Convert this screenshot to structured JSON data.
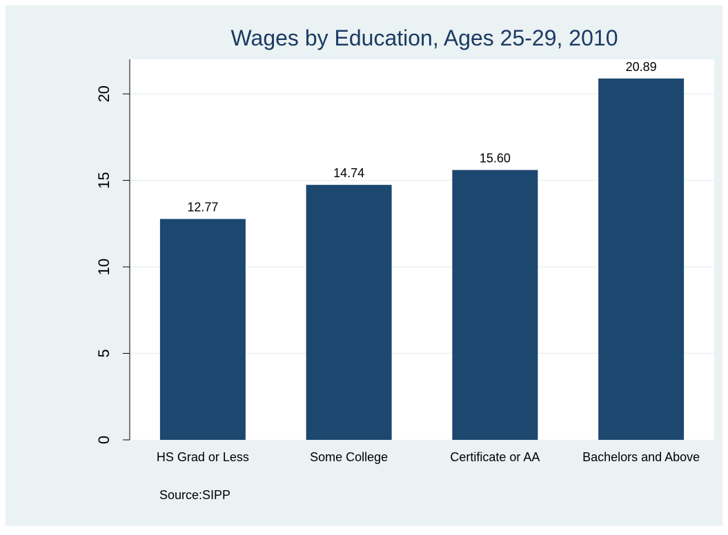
{
  "chart_data": {
    "type": "bar",
    "title": "Wages by Education, Ages 25-29, 2010",
    "xlabel": "",
    "ylabel": "",
    "categories": [
      "HS Grad or Less",
      "Some College",
      "Certificate or AA",
      "Bachelors and Above"
    ],
    "values": [
      12.77,
      14.74,
      15.6,
      20.89
    ],
    "value_labels": [
      "12.77",
      "14.74",
      "15.60",
      "20.89"
    ],
    "ylim": [
      0,
      22
    ],
    "yticks": [
      0,
      5,
      10,
      15,
      20
    ],
    "ytick_labels": [
      "0",
      "5",
      "10",
      "15",
      "20"
    ],
    "grid": true,
    "note": "Source:SIPP",
    "colors": {
      "bar": "#1c476f",
      "outer_background": "#eaf2f3",
      "plot_background": "#ffffff",
      "grid": "#eaf2f3",
      "title": "#1c3a63",
      "text": "#000000"
    }
  }
}
